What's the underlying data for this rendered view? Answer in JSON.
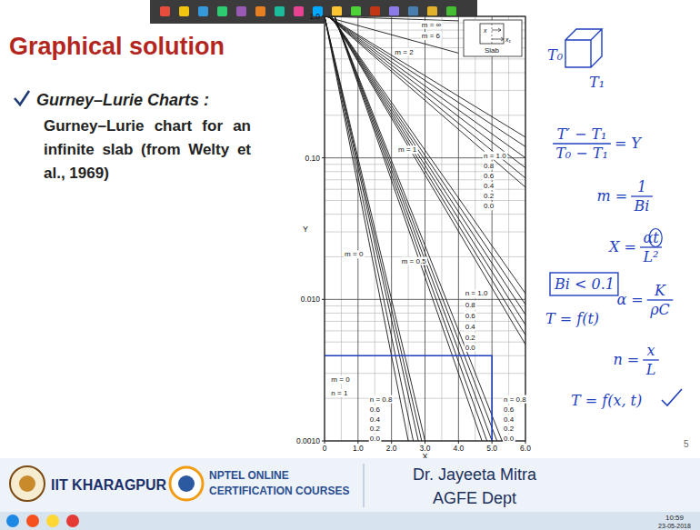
{
  "slide": {
    "title": "Graphical solution",
    "bullet": "Gurney–Lurie Charts :",
    "description": "Gurney–Lurie chart for an infinite slab (from Welty et al., 1969)",
    "page_number": "5"
  },
  "footer": {
    "institute": "IIT KHARAGPUR",
    "course_lines": [
      "NPTEL ONLINE",
      "CERTIFICATION COURSES"
    ],
    "presenter": "Dr. Jayeeta Mitra",
    "department": "AGFE Dept"
  },
  "taskbar": {
    "time": "10:59",
    "date": "23-05-2018"
  },
  "chart_inset": {
    "title": "Slab",
    "labels": [
      "x",
      "x₁"
    ]
  },
  "notes": [
    {
      "kind": "text",
      "text": "T₀"
    },
    {
      "kind": "text",
      "text": "T₁"
    },
    {
      "kind": "fraction",
      "num": "T′ − T₁",
      "den": "T₀ − T₁",
      "after": "= Y"
    },
    {
      "kind": "fraction",
      "before": "m =",
      "num": "1",
      "den": "Bi"
    },
    {
      "kind": "fraction",
      "before": "X =",
      "num": "αt",
      "den": "L²"
    },
    {
      "kind": "boxed",
      "text": "Bi < 0.1"
    },
    {
      "kind": "fraction",
      "before": "α =",
      "num": "K",
      "den": "ρC"
    },
    {
      "kind": "text",
      "text": "T = f(t)"
    },
    {
      "kind": "fraction",
      "before": "n =",
      "num": "x",
      "den": "L"
    },
    {
      "kind": "text",
      "text": "T = f(x, t)"
    }
  ],
  "chart_data": {
    "type": "line",
    "x_label": "X",
    "y_label": "Y",
    "log": "y",
    "grid": true,
    "xlim": [
      0,
      6.0
    ],
    "ylim": [
      0.001,
      1.0
    ],
    "xticks": [
      0,
      {
        "value": 1,
        "label": "1.0"
      },
      {
        "value": 2,
        "label": "2.0"
      },
      {
        "value": 3,
        "label": "3.0"
      },
      {
        "value": 4,
        "label": "4.0"
      },
      {
        "value": 5,
        "label": "5.0"
      },
      {
        "value": 6,
        "label": "6.0"
      }
    ],
    "yticks": [
      {
        "value": 1,
        "label": "1.0"
      },
      {
        "value": 0.1,
        "label": "0.10"
      },
      {
        "value": 0.01,
        "label": "0.010"
      },
      {
        "value": 0.001,
        "label": "0.0010"
      }
    ],
    "series": [
      {
        "color": "#1a1a1a",
        "x": [
          0,
          4.0
        ],
        "values": [
          1.0,
          0.93
        ]
      },
      {
        "color": "#1a1a1a",
        "x": [
          0,
          4.0
        ],
        "values": [
          1.0,
          0.55
        ]
      },
      {
        "color": "#1a1a1a",
        "x": [
          0.1,
          6.0
        ],
        "values": [
          1.0,
          0.14
        ]
      },
      {
        "color": "#1a1a1a",
        "x": [
          0.1,
          6.0
        ],
        "values": [
          1.0,
          0.12
        ]
      },
      {
        "color": "#1a1a1a",
        "x": [
          0.1,
          6.0
        ],
        "values": [
          1.0,
          0.1
        ]
      },
      {
        "color": "#1a1a1a",
        "x": [
          0.1,
          6.0
        ],
        "values": [
          1.0,
          0.085
        ]
      },
      {
        "color": "#1a1a1a",
        "x": [
          0.1,
          6.0
        ],
        "values": [
          1.0,
          0.072
        ]
      },
      {
        "color": "#1a1a1a",
        "x": [
          0.1,
          6.0
        ],
        "values": [
          1.0,
          0.062
        ]
      },
      {
        "color": "#1a1a1a",
        "x": [
          0.2,
          6.0
        ],
        "values": [
          1.0,
          0.011
        ]
      },
      {
        "color": "#1a1a1a",
        "x": [
          0.2,
          6.0
        ],
        "values": [
          1.0,
          0.0092
        ]
      },
      {
        "color": "#1a1a1a",
        "x": [
          0.2,
          6.0
        ],
        "values": [
          1.0,
          0.0078
        ]
      },
      {
        "color": "#1a1a1a",
        "x": [
          0.2,
          6.0
        ],
        "values": [
          1.0,
          0.0066
        ]
      },
      {
        "color": "#1a1a1a",
        "x": [
          0.2,
          6.0
        ],
        "values": [
          1.0,
          0.0056
        ]
      },
      {
        "color": "#1a1a1a",
        "x": [
          0.2,
          6.0
        ],
        "values": [
          1.0,
          0.0048
        ]
      },
      {
        "color": "#1a1a1a",
        "x": [
          0.3,
          4.7
        ],
        "values": [
          1.0,
          0.001
        ]
      },
      {
        "color": "#1a1a1a",
        "x": [
          0.3,
          4.85
        ],
        "values": [
          1.0,
          0.001
        ]
      },
      {
        "color": "#1a1a1a",
        "x": [
          0.3,
          5.0
        ],
        "values": [
          1.0,
          0.001
        ]
      },
      {
        "color": "#1a1a1a",
        "x": [
          0.3,
          5.15
        ],
        "values": [
          1.0,
          0.001
        ]
      },
      {
        "color": "#1a1a1a",
        "x": [
          0.3,
          5.3
        ],
        "values": [
          1.0,
          0.001
        ]
      },
      {
        "color": "#1a1a1a",
        "x": [
          0,
          2.5
        ],
        "values": [
          1.0,
          0.001
        ]
      },
      {
        "color": "#1a1a1a",
        "x": [
          0,
          2.65
        ],
        "values": [
          1.0,
          0.001
        ]
      },
      {
        "color": "#1a1a1a",
        "x": [
          0,
          2.8
        ],
        "values": [
          1.0,
          0.001
        ]
      },
      {
        "color": "#1a1a1a",
        "x": [
          0,
          2.9
        ],
        "values": [
          1.0,
          0.001
        ]
      },
      {
        "color": "#1a1a1a",
        "x": [
          0,
          3.0
        ],
        "values": [
          1.0,
          0.001
        ]
      },
      {
        "color": "#1f3fbf",
        "x": [
          0,
          5.0,
          5.0
        ],
        "values": [
          0.004,
          0.004,
          0.001
        ]
      }
    ],
    "annotations": [
      {
        "text": "m = ∞",
        "x": 2.9,
        "y": 0.84
      },
      {
        "text": "m = 6",
        "x": 2.9,
        "y": 0.7
      },
      {
        "text": "m = 2",
        "x": 2.1,
        "y": 0.54
      },
      {
        "text": "m = 1",
        "x": 2.2,
        "y": 0.11
      },
      {
        "text": "m = 0.5",
        "x": 2.3,
        "y": 0.018
      },
      {
        "text": "m = 0",
        "x": 0.6,
        "y": 0.02
      },
      {
        "text": "m = 0",
        "x": 0.2,
        "y": 0.0026
      },
      {
        "text": "n = 1",
        "x": 0.2,
        "y": 0.0021
      },
      {
        "text": "n = 1.0",
        "x": 4.75,
        "y": 0.1
      },
      {
        "text": "0.8",
        "x": 4.75,
        "y": 0.085
      },
      {
        "text": "0.6",
        "x": 4.75,
        "y": 0.072
      },
      {
        "text": "0.4",
        "x": 4.75,
        "y": 0.061
      },
      {
        "text": "0.2",
        "x": 4.75,
        "y": 0.052
      },
      {
        "text": "0.0",
        "x": 4.75,
        "y": 0.044
      },
      {
        "text": "n = 1.0",
        "x": 4.2,
        "y": 0.0106
      },
      {
        "text": "0.8",
        "x": 4.2,
        "y": 0.0088
      },
      {
        "text": "0.6",
        "x": 4.2,
        "y": 0.0074
      },
      {
        "text": "0.4",
        "x": 4.2,
        "y": 0.0062
      },
      {
        "text": "0.2",
        "x": 4.2,
        "y": 0.0052
      },
      {
        "text": "0.0",
        "x": 4.2,
        "y": 0.0044
      },
      {
        "text": "n = 0.8",
        "x": 5.35,
        "y": 0.0019
      },
      {
        "text": "0.6",
        "x": 5.35,
        "y": 0.0016
      },
      {
        "text": "0.4",
        "x": 5.35,
        "y": 0.00136
      },
      {
        "text": "0.2",
        "x": 5.35,
        "y": 0.00117
      },
      {
        "text": "0.0",
        "x": 5.35,
        "y": 0.001
      },
      {
        "text": "n = 0.8",
        "x": 1.35,
        "y": 0.0019
      },
      {
        "text": "0.6",
        "x": 1.35,
        "y": 0.0016
      },
      {
        "text": "0.4",
        "x": 1.35,
        "y": 0.00136
      },
      {
        "text": "0.2",
        "x": 1.35,
        "y": 0.00117
      },
      {
        "text": "0.0",
        "x": 1.35,
        "y": 0.001
      }
    ]
  }
}
